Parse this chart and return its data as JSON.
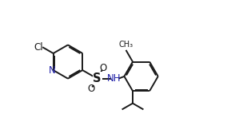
{
  "background_color": "#ffffff",
  "line_color": "#1a1a1a",
  "text_color": "#1a1a1a",
  "n_color": "#2222aa",
  "bond_width": 1.4,
  "font_size": 8.5,
  "figsize": [
    2.94,
    1.72
  ],
  "dpi": 100,
  "xlim": [
    0,
    10
  ],
  "ylim": [
    0,
    6
  ]
}
